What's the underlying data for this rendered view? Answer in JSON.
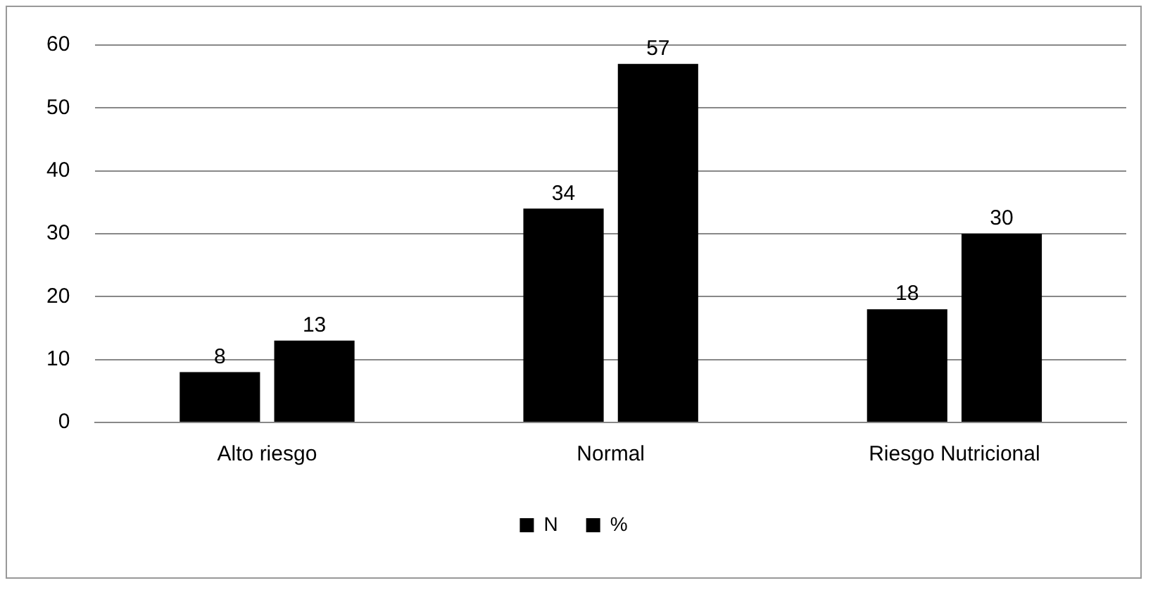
{
  "chart_data": {
    "type": "bar",
    "categories": [
      "Alto riesgo",
      "Normal",
      "Riesgo Nutricional"
    ],
    "series": [
      {
        "name": "N",
        "color": "#000000",
        "values": [
          8,
          34,
          18
        ]
      },
      {
        "name": "%",
        "color": "#000000",
        "values": [
          13,
          57,
          30
        ]
      }
    ],
    "ylim": [
      0,
      60
    ],
    "yticks": [
      0,
      10,
      20,
      30,
      40,
      50,
      60
    ],
    "grid": "y",
    "legend": "bottom",
    "data_labels": true
  }
}
